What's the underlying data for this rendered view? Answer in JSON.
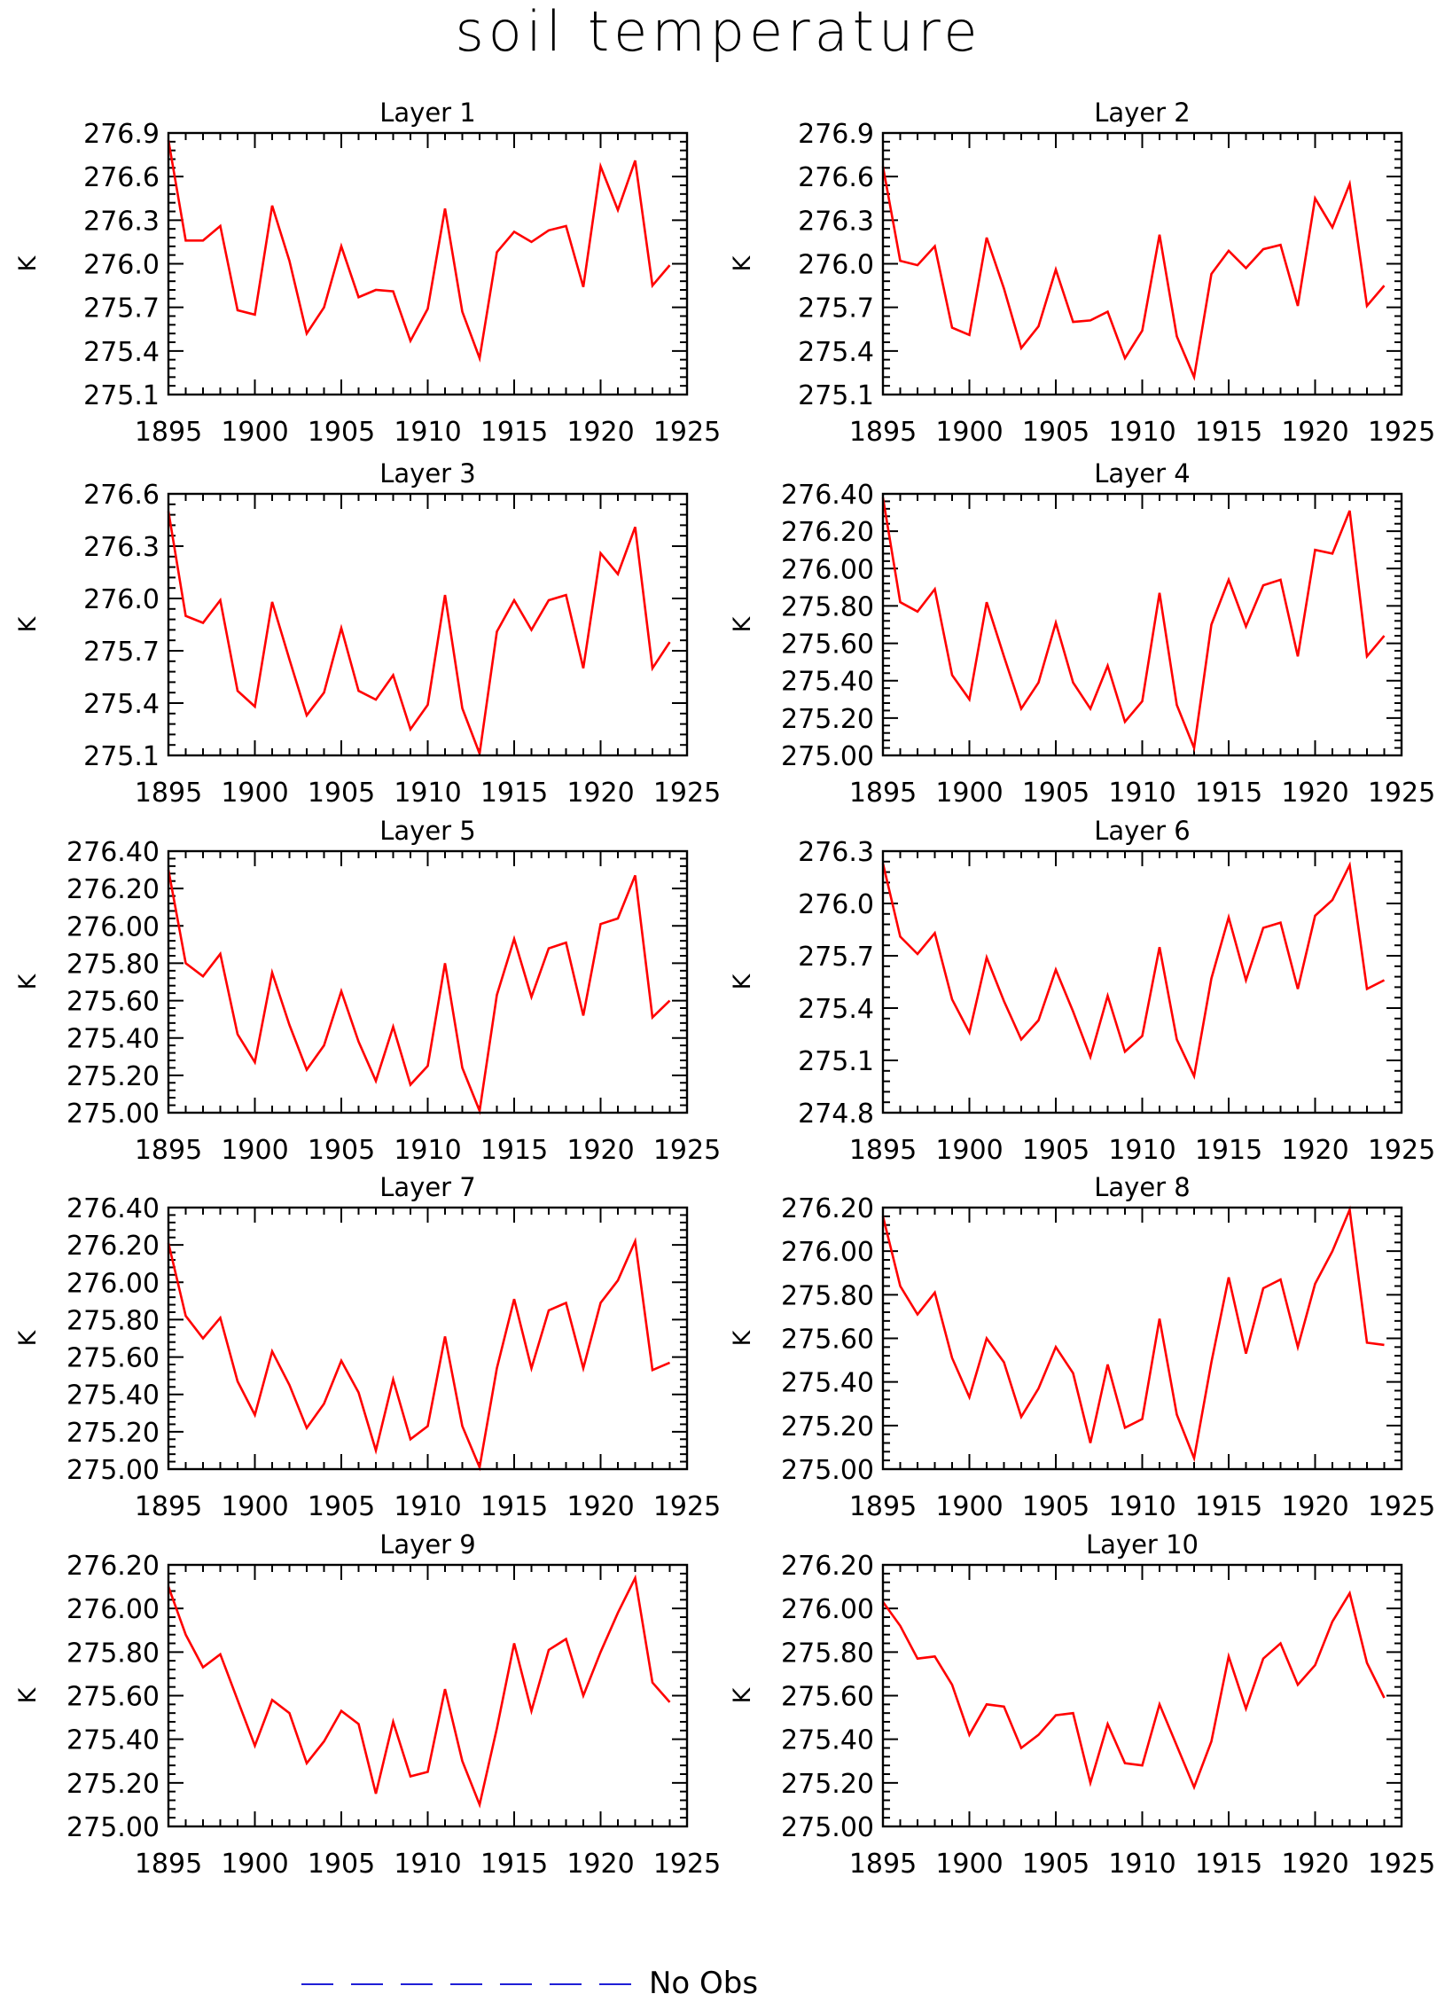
{
  "title": "soil temperature",
  "legend": {
    "label": "No Obs",
    "line_color": "#1f1fd6",
    "line_style": "dashed"
  },
  "colors": {
    "series": "#ff0000",
    "axis": "#000000"
  },
  "chart_data": [
    {
      "type": "line",
      "title": "Layer 1",
      "ylabel": "K",
      "xlim": [
        1895,
        1925
      ],
      "ylim": [
        275.1,
        276.9
      ],
      "yticks": [
        "275.1",
        "275.4",
        "275.7",
        "276.0",
        "276.3",
        "276.6",
        "276.9"
      ],
      "xticks": [
        1895,
        1900,
        1905,
        1910,
        1915,
        1920,
        1925
      ],
      "x": [
        1895,
        1896,
        1897,
        1898,
        1899,
        1900,
        1901,
        1902,
        1903,
        1904,
        1905,
        1906,
        1907,
        1908,
        1909,
        1910,
        1911,
        1912,
        1913,
        1914,
        1915,
        1916,
        1917,
        1918,
        1919,
        1920,
        1921,
        1922,
        1923,
        1924
      ],
      "values": [
        276.85,
        276.16,
        276.16,
        276.26,
        275.68,
        275.65,
        276.4,
        276.02,
        275.52,
        275.7,
        276.12,
        275.77,
        275.82,
        275.81,
        275.47,
        275.69,
        276.38,
        275.67,
        275.35,
        276.08,
        276.22,
        276.15,
        276.23,
        276.26,
        275.84,
        276.67,
        276.37,
        276.71,
        275.85,
        275.99
      ]
    },
    {
      "type": "line",
      "title": "Layer 2",
      "ylabel": "K",
      "xlim": [
        1895,
        1925
      ],
      "ylim": [
        275.1,
        276.9
      ],
      "yticks": [
        "275.1",
        "275.4",
        "275.7",
        "276.0",
        "276.3",
        "276.6",
        "276.9"
      ],
      "xticks": [
        1895,
        1900,
        1905,
        1910,
        1915,
        1920,
        1925
      ],
      "x": [
        1895,
        1896,
        1897,
        1898,
        1899,
        1900,
        1901,
        1902,
        1903,
        1904,
        1905,
        1906,
        1907,
        1908,
        1909,
        1910,
        1911,
        1912,
        1913,
        1914,
        1915,
        1916,
        1917,
        1918,
        1919,
        1920,
        1921,
        1922,
        1923,
        1924
      ],
      "values": [
        276.67,
        276.02,
        275.99,
        276.12,
        275.56,
        275.51,
        276.18,
        275.83,
        275.42,
        275.57,
        275.96,
        275.6,
        275.61,
        275.67,
        275.35,
        275.54,
        276.2,
        275.5,
        275.22,
        275.93,
        276.09,
        275.97,
        276.1,
        276.13,
        275.71,
        276.45,
        276.25,
        276.55,
        275.71,
        275.85
      ]
    },
    {
      "type": "line",
      "title": "Layer 3",
      "ylabel": "K",
      "xlim": [
        1895,
        1925
      ],
      "ylim": [
        275.1,
        276.6
      ],
      "yticks": [
        "275.1",
        "275.4",
        "275.7",
        "276.0",
        "276.3",
        "276.6"
      ],
      "xticks": [
        1895,
        1900,
        1905,
        1910,
        1915,
        1920,
        1925
      ],
      "x": [
        1895,
        1896,
        1897,
        1898,
        1899,
        1900,
        1901,
        1902,
        1903,
        1904,
        1905,
        1906,
        1907,
        1908,
        1909,
        1910,
        1911,
        1912,
        1913,
        1914,
        1915,
        1916,
        1917,
        1918,
        1919,
        1920,
        1921,
        1922,
        1923,
        1924
      ],
      "values": [
        276.5,
        275.9,
        275.86,
        275.99,
        275.47,
        275.38,
        275.98,
        275.65,
        275.33,
        275.46,
        275.83,
        275.47,
        275.42,
        275.56,
        275.25,
        275.39,
        276.02,
        275.37,
        275.11,
        275.81,
        275.99,
        275.82,
        275.99,
        276.02,
        275.6,
        276.26,
        276.14,
        276.41,
        275.6,
        275.75
      ]
    },
    {
      "type": "line",
      "title": "Layer 4",
      "ylabel": "K",
      "xlim": [
        1895,
        1925
      ],
      "ylim": [
        275.0,
        276.4
      ],
      "yticks": [
        "275.00",
        "275.20",
        "275.40",
        "275.60",
        "275.80",
        "276.00",
        "276.20",
        "276.40"
      ],
      "xticks": [
        1895,
        1900,
        1905,
        1910,
        1915,
        1920,
        1925
      ],
      "x": [
        1895,
        1896,
        1897,
        1898,
        1899,
        1900,
        1901,
        1902,
        1903,
        1904,
        1905,
        1906,
        1907,
        1908,
        1909,
        1910,
        1911,
        1912,
        1913,
        1914,
        1915,
        1916,
        1917,
        1918,
        1919,
        1920,
        1921,
        1922,
        1923,
        1924
      ],
      "values": [
        276.38,
        275.82,
        275.77,
        275.89,
        275.43,
        275.3,
        275.82,
        275.53,
        275.25,
        275.39,
        275.71,
        275.39,
        275.25,
        275.48,
        275.18,
        275.29,
        275.87,
        275.27,
        275.04,
        275.7,
        275.94,
        275.69,
        275.91,
        275.94,
        275.53,
        276.1,
        276.08,
        276.31,
        275.53,
        275.64
      ]
    },
    {
      "type": "line",
      "title": "Layer 5",
      "ylabel": "K",
      "xlim": [
        1895,
        1925
      ],
      "ylim": [
        275.0,
        276.4
      ],
      "yticks": [
        "275.00",
        "275.20",
        "275.40",
        "275.60",
        "275.80",
        "276.00",
        "276.20",
        "276.40"
      ],
      "xticks": [
        1895,
        1900,
        1905,
        1910,
        1915,
        1920,
        1925
      ],
      "x": [
        1895,
        1896,
        1897,
        1898,
        1899,
        1900,
        1901,
        1902,
        1903,
        1904,
        1905,
        1906,
        1907,
        1908,
        1909,
        1910,
        1911,
        1912,
        1913,
        1914,
        1915,
        1916,
        1917,
        1918,
        1919,
        1920,
        1921,
        1922,
        1923,
        1924
      ],
      "values": [
        276.3,
        275.8,
        275.73,
        275.85,
        275.42,
        275.27,
        275.75,
        275.47,
        275.23,
        275.36,
        275.65,
        275.38,
        275.17,
        275.46,
        275.15,
        275.25,
        275.8,
        275.24,
        275.01,
        275.63,
        275.93,
        275.62,
        275.88,
        275.91,
        275.52,
        276.01,
        276.04,
        276.27,
        275.51,
        275.6
      ]
    },
    {
      "type": "line",
      "title": "Layer 6",
      "ylabel": "K",
      "xlim": [
        1895,
        1925
      ],
      "ylim": [
        274.8,
        276.3
      ],
      "yticks": [
        "274.8",
        "275.1",
        "275.4",
        "275.7",
        "276.0",
        "276.3"
      ],
      "xticks": [
        1895,
        1900,
        1905,
        1910,
        1915,
        1920,
        1925
      ],
      "x": [
        1895,
        1896,
        1897,
        1898,
        1899,
        1900,
        1901,
        1902,
        1903,
        1904,
        1905,
        1906,
        1907,
        1908,
        1909,
        1910,
        1911,
        1912,
        1913,
        1914,
        1915,
        1916,
        1917,
        1918,
        1919,
        1920,
        1921,
        1922,
        1923,
        1924
      ],
      "values": [
        276.23,
        275.81,
        275.71,
        275.83,
        275.45,
        275.26,
        275.69,
        275.44,
        275.22,
        275.33,
        275.62,
        275.38,
        275.12,
        275.47,
        275.15,
        275.24,
        275.75,
        275.22,
        275.01,
        275.57,
        275.92,
        275.56,
        275.86,
        275.89,
        275.51,
        275.93,
        276.02,
        276.22,
        275.51,
        275.56
      ]
    },
    {
      "type": "line",
      "title": "Layer 7",
      "ylabel": "K",
      "xlim": [
        1895,
        1925
      ],
      "ylim": [
        275.0,
        276.4
      ],
      "yticks": [
        "275.00",
        "275.20",
        "275.40",
        "275.60",
        "275.80",
        "276.00",
        "276.20",
        "276.40"
      ],
      "xticks": [
        1895,
        1900,
        1905,
        1910,
        1915,
        1920,
        1925
      ],
      "x": [
        1895,
        1896,
        1897,
        1898,
        1899,
        1900,
        1901,
        1902,
        1903,
        1904,
        1905,
        1906,
        1907,
        1908,
        1909,
        1910,
        1911,
        1912,
        1913,
        1914,
        1915,
        1916,
        1917,
        1918,
        1919,
        1920,
        1921,
        1922,
        1923,
        1924
      ],
      "values": [
        276.21,
        275.82,
        275.7,
        275.81,
        275.47,
        275.29,
        275.63,
        275.45,
        275.22,
        275.35,
        275.58,
        275.41,
        275.1,
        275.48,
        275.16,
        275.23,
        275.71,
        275.23,
        275.01,
        275.54,
        275.91,
        275.54,
        275.85,
        275.89,
        275.54,
        275.89,
        276.01,
        276.22,
        275.53,
        275.57
      ]
    },
    {
      "type": "line",
      "title": "Layer 8",
      "ylabel": "K",
      "xlim": [
        1895,
        1925
      ],
      "ylim": [
        275.0,
        276.2
      ],
      "yticks": [
        "275.00",
        "275.20",
        "275.40",
        "275.60",
        "275.80",
        "276.00",
        "276.20"
      ],
      "xticks": [
        1895,
        1900,
        1905,
        1910,
        1915,
        1920,
        1925
      ],
      "x": [
        1895,
        1896,
        1897,
        1898,
        1899,
        1900,
        1901,
        1902,
        1903,
        1904,
        1905,
        1906,
        1907,
        1908,
        1909,
        1910,
        1911,
        1912,
        1913,
        1914,
        1915,
        1916,
        1917,
        1918,
        1919,
        1920,
        1921,
        1922,
        1923,
        1924
      ],
      "values": [
        276.16,
        275.84,
        275.71,
        275.81,
        275.51,
        275.33,
        275.6,
        275.49,
        275.24,
        275.37,
        275.56,
        275.44,
        275.12,
        275.48,
        275.19,
        275.23,
        275.69,
        275.25,
        275.05,
        275.49,
        275.88,
        275.53,
        275.83,
        275.87,
        275.56,
        275.85,
        276.0,
        276.19,
        275.58,
        275.57
      ]
    },
    {
      "type": "line",
      "title": "Layer 9",
      "ylabel": "K",
      "xlim": [
        1895,
        1925
      ],
      "ylim": [
        275.0,
        276.2
      ],
      "yticks": [
        "275.00",
        "275.20",
        "275.40",
        "275.60",
        "275.80",
        "276.00",
        "276.20"
      ],
      "xticks": [
        1895,
        1900,
        1905,
        1910,
        1915,
        1920,
        1925
      ],
      "x": [
        1895,
        1896,
        1897,
        1898,
        1899,
        1900,
        1901,
        1902,
        1903,
        1904,
        1905,
        1906,
        1907,
        1908,
        1909,
        1910,
        1911,
        1912,
        1913,
        1914,
        1915,
        1916,
        1917,
        1918,
        1919,
        1920,
        1921,
        1922,
        1923,
        1924
      ],
      "values": [
        276.1,
        275.88,
        275.73,
        275.79,
        275.58,
        275.37,
        275.58,
        275.52,
        275.29,
        275.39,
        275.53,
        275.47,
        275.15,
        275.48,
        275.23,
        275.25,
        275.63,
        275.3,
        275.1,
        275.45,
        275.84,
        275.53,
        275.81,
        275.86,
        275.6,
        275.8,
        275.98,
        276.14,
        275.66,
        275.57
      ]
    },
    {
      "type": "line",
      "title": "Layer 10",
      "ylabel": "K",
      "xlim": [
        1895,
        1925
      ],
      "ylim": [
        275.0,
        276.2
      ],
      "yticks": [
        "275.00",
        "275.20",
        "275.40",
        "275.60",
        "275.80",
        "276.00",
        "276.20"
      ],
      "xticks": [
        1895,
        1900,
        1905,
        1910,
        1915,
        1920,
        1925
      ],
      "x": [
        1895,
        1896,
        1897,
        1898,
        1899,
        1900,
        1901,
        1902,
        1903,
        1904,
        1905,
        1906,
        1907,
        1908,
        1909,
        1910,
        1911,
        1912,
        1913,
        1914,
        1915,
        1916,
        1917,
        1918,
        1919,
        1920,
        1921,
        1922,
        1923,
        1924
      ],
      "values": [
        276.03,
        275.92,
        275.77,
        275.78,
        275.65,
        275.42,
        275.56,
        275.55,
        275.36,
        275.42,
        275.51,
        275.52,
        275.2,
        275.47,
        275.29,
        275.28,
        275.56,
        275.37,
        275.18,
        275.39,
        275.78,
        275.54,
        275.77,
        275.84,
        275.65,
        275.74,
        275.94,
        276.07,
        275.75,
        275.59
      ]
    }
  ]
}
